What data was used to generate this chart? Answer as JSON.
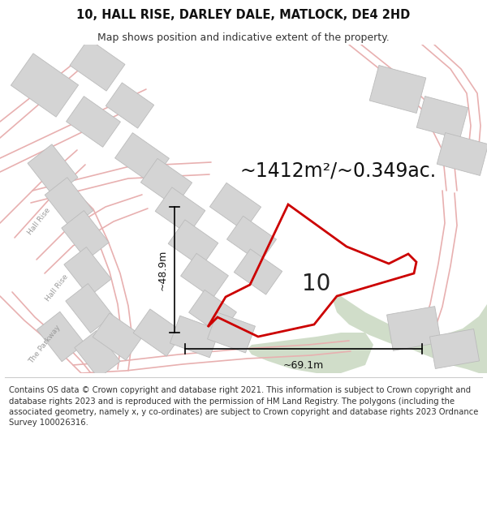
{
  "title": "10, HALL RISE, DARLEY DALE, MATLOCK, DE4 2HD",
  "subtitle": "Map shows position and indicative extent of the property.",
  "area_text": "~1412m²/~0.349ac.",
  "label_10": "10",
  "dim_height": "~48.9m",
  "dim_width": "~69.1m",
  "footer": "Contains OS data © Crown copyright and database right 2021. This information is subject to Crown copyright and database rights 2023 and is reproduced with the permission of HM Land Registry. The polygons (including the associated geometry, namely x, y co-ordinates) are subject to Crown copyright and database rights 2023 Ordnance Survey 100026316.",
  "bg_color": "#ffffff",
  "map_bg": "#ffffff",
  "red_color": "#cc0000",
  "pink_color": "#e8b0b0",
  "gray_building": "#d4d4d4",
  "gray_building_edge": "#bbbbbb",
  "green_area": "#c8d8c0",
  "figsize": [
    6.0,
    6.25
  ],
  "dpi": 100,
  "title_fontsize": 10.5,
  "subtitle_fontsize": 9,
  "area_fontsize": 17,
  "label_fontsize": 20,
  "dim_fontsize": 9,
  "road_label_fontsize": 6.5,
  "footer_fontsize": 7.2
}
